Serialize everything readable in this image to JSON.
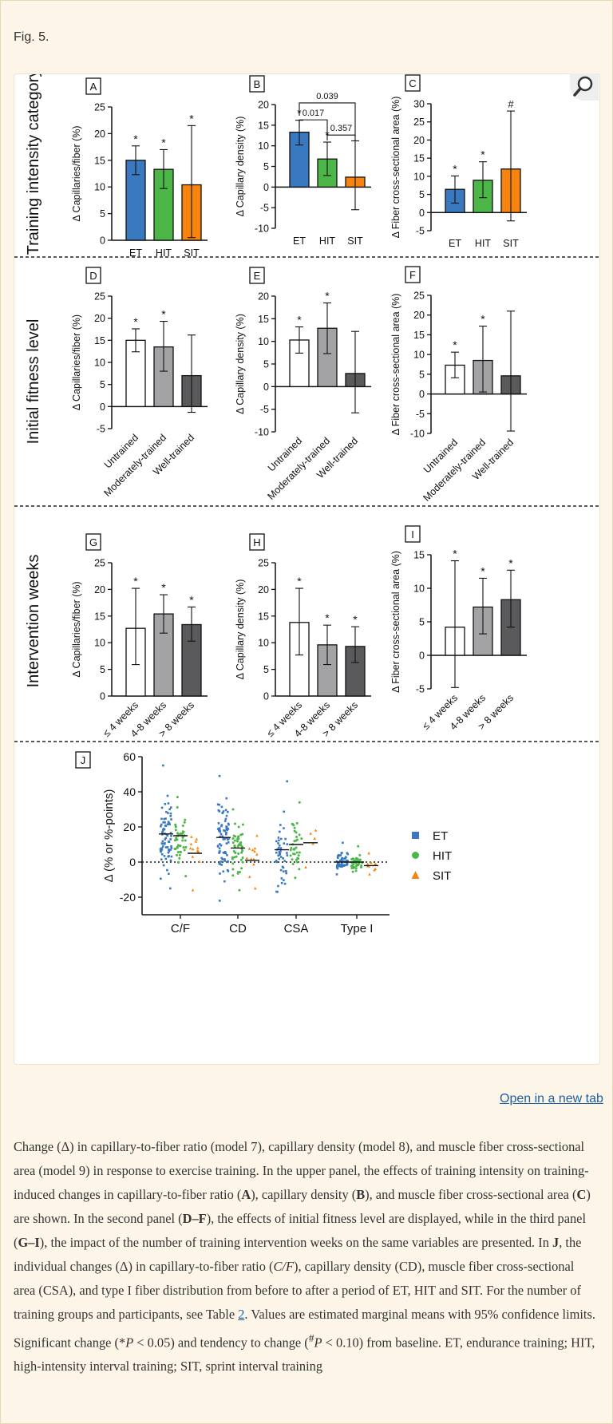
{
  "fig_label": "Fig. 5.",
  "open_link": "Open in a new tab",
  "colors": {
    "ET": "#3a78bf",
    "HIT": "#4cb648",
    "SIT": "#f88410",
    "white": "#ffffff",
    "lightgrey": "#a3a3a6",
    "darkgrey": "#5a5a5c"
  },
  "rows": [
    {
      "title": "Training intensity category",
      "panels": [
        "A",
        "B",
        "C"
      ]
    },
    {
      "title": "Initial fitness level",
      "panels": [
        "D",
        "E",
        "F"
      ]
    },
    {
      "title": "Intervention weeks",
      "panels": [
        "G",
        "H",
        "I"
      ]
    }
  ],
  "chart_data": [
    {
      "panel": "A",
      "type": "bar",
      "ylabel": "Δ Capillaries/fiber (%)",
      "ylim": [
        0,
        25
      ],
      "ticks": [
        0,
        5,
        10,
        15,
        20,
        25
      ],
      "categories": [
        "ET",
        "HIT",
        "SIT"
      ],
      "fills": [
        "ET",
        "HIT",
        "SIT"
      ],
      "values": [
        15.0,
        13.3,
        10.4
      ],
      "ci": [
        [
          12.3,
          17.7
        ],
        [
          9.7,
          17.0
        ],
        [
          0.5,
          21.5
        ]
      ],
      "marks": [
        "*",
        "*",
        "*"
      ]
    },
    {
      "panel": "B",
      "type": "bar",
      "ylabel": "Δ Capillary density (%)",
      "ylim": [
        -10,
        20
      ],
      "ticks": [
        -10,
        -5,
        0,
        5,
        10,
        15,
        20
      ],
      "categories": [
        "ET",
        "HIT",
        "SIT"
      ],
      "fills": [
        "ET",
        "HIT",
        "SIT"
      ],
      "values": [
        13.3,
        6.8,
        2.4
      ],
      "ci": [
        [
          10.2,
          16.2
        ],
        [
          2.8,
          10.9
        ],
        [
          -5.5,
          11.2
        ]
      ],
      "marks": [
        "*",
        "*",
        ""
      ],
      "brackets": [
        {
          "from": 0,
          "to": 2,
          "label": "0.039"
        },
        {
          "from": 0,
          "to": 1,
          "label": "0.017"
        },
        {
          "from": 1,
          "to": 2,
          "label": "0.357"
        }
      ]
    },
    {
      "panel": "C",
      "type": "bar",
      "ylabel": "Δ Fiber cross-sectional area (%)",
      "ylim": [
        -5,
        30
      ],
      "ticks": [
        -5,
        0,
        5,
        10,
        15,
        20,
        25,
        30
      ],
      "categories": [
        "ET",
        "HIT",
        "SIT"
      ],
      "fills": [
        "ET",
        "HIT",
        "SIT"
      ],
      "values": [
        6.4,
        8.9,
        12.0
      ],
      "ci": [
        [
          2.6,
          10.1
        ],
        [
          4.1,
          14.0
        ],
        [
          -2.3,
          28.0
        ]
      ],
      "marks": [
        "*",
        "*",
        "#"
      ]
    },
    {
      "panel": "D",
      "type": "bar",
      "ylabel": "Δ Capillaries/fiber (%)",
      "ylim": [
        -5,
        25
      ],
      "ticks": [
        -5,
        0,
        5,
        10,
        15,
        20,
        25
      ],
      "categories": [
        "Untrained",
        "Moderately-trained",
        "Well-trained"
      ],
      "fills": [
        "white",
        "lightgrey",
        "darkgrey"
      ],
      "values": [
        15.0,
        13.5,
        7.0
      ],
      "ci": [
        [
          12.4,
          17.6
        ],
        [
          8.0,
          19.3
        ],
        [
          -1.3,
          16.2
        ]
      ],
      "marks": [
        "*",
        "*",
        ""
      ]
    },
    {
      "panel": "E",
      "type": "bar",
      "ylabel": "Δ Capillary density (%)",
      "ylim": [
        -10,
        20
      ],
      "ticks": [
        -10,
        -5,
        0,
        5,
        10,
        15,
        20
      ],
      "categories": [
        "Untrained",
        "Moderately-trained",
        "Well-trained"
      ],
      "fills": [
        "white",
        "lightgrey",
        "darkgrey"
      ],
      "values": [
        10.3,
        12.9,
        2.9
      ],
      "ci": [
        [
          7.4,
          13.2
        ],
        [
          7.3,
          18.5
        ],
        [
          -5.8,
          12.2
        ]
      ],
      "marks": [
        "*",
        "*",
        ""
      ]
    },
    {
      "panel": "F",
      "type": "bar",
      "ylabel": "Δ Fiber cross-sectional area (%)",
      "ylim": [
        -10,
        25
      ],
      "ticks": [
        -10,
        -5,
        0,
        5,
        10,
        15,
        20,
        25
      ],
      "categories": [
        "Untrained",
        "Moderately-trained",
        "Well-trained"
      ],
      "fills": [
        "white",
        "lightgrey",
        "darkgrey"
      ],
      "values": [
        7.3,
        8.5,
        4.6
      ],
      "ci": [
        [
          4.1,
          10.6
        ],
        [
          0.5,
          17.2
        ],
        [
          -9.4,
          21.0
        ]
      ],
      "marks": [
        "*",
        "*",
        ""
      ]
    },
    {
      "panel": "G",
      "type": "bar",
      "ylabel": "Δ Capillaries/fiber (%)",
      "ylim": [
        0,
        25
      ],
      "ticks": [
        0,
        5,
        10,
        15,
        20,
        25
      ],
      "categories": [
        "≤ 4 weeks",
        "4-8 weeks",
        "> 8 weeks"
      ],
      "fills": [
        "white",
        "lightgrey",
        "darkgrey"
      ],
      "values": [
        12.7,
        15.4,
        13.4
      ],
      "ci": [
        [
          5.9,
          20.2
        ],
        [
          11.8,
          19.0
        ],
        [
          10.3,
          16.7
        ]
      ],
      "marks": [
        "*",
        "*",
        "*"
      ]
    },
    {
      "panel": "H",
      "type": "bar",
      "ylabel": "Δ Capillary density (%)",
      "ylim": [
        0,
        25
      ],
      "ticks": [
        0,
        5,
        10,
        15,
        20,
        25
      ],
      "categories": [
        "≤ 4 weeks",
        "4-8 weeks",
        "> 8 weeks"
      ],
      "fills": [
        "white",
        "lightgrey",
        "darkgrey"
      ],
      "values": [
        13.8,
        9.6,
        9.3
      ],
      "ci": [
        [
          7.7,
          20.2
        ],
        [
          5.9,
          13.3
        ],
        [
          6.3,
          13.0
        ]
      ],
      "marks": [
        "*",
        "*",
        "*"
      ]
    },
    {
      "panel": "I",
      "type": "bar",
      "ylabel": "Δ Fiber cross-sectional area (%)",
      "ylim": [
        -5,
        15
      ],
      "ticks": [
        -5,
        0,
        5,
        10,
        15
      ],
      "categories": [
        "≤ 4 weeks",
        "4-8 weeks",
        "> 8 weeks"
      ],
      "fills": [
        "white",
        "lightgrey",
        "darkgrey"
      ],
      "values": [
        4.2,
        7.2,
        8.3
      ],
      "ci": [
        [
          -4.8,
          14.1
        ],
        [
          3.2,
          11.5
        ],
        [
          4.2,
          12.7
        ]
      ],
      "marks": [
        "*",
        "*",
        "*"
      ]
    },
    {
      "panel": "J",
      "type": "scatter",
      "ylabel": "Δ (% or %-points)",
      "ylim": [
        -30,
        60
      ],
      "ticks": [
        -20,
        0,
        20,
        40,
        60
      ],
      "categories": [
        "C/F",
        "CD",
        "CSA",
        "Type I"
      ],
      "legend": [
        {
          "name": "ET",
          "fill": "ET",
          "shape": "square"
        },
        {
          "name": "HIT",
          "fill": "HIT",
          "shape": "circle"
        },
        {
          "name": "SIT",
          "fill": "SIT",
          "shape": "triangle"
        }
      ],
      "groups": [
        {
          "cat": 0,
          "series": "ET",
          "mean": 16,
          "n": 75,
          "min": -15,
          "max": 55
        },
        {
          "cat": 0,
          "series": "HIT",
          "mean": 15,
          "n": 45,
          "min": -8,
          "max": 37
        },
        {
          "cat": 0,
          "series": "SIT",
          "mean": 5,
          "n": 12,
          "min": -16,
          "max": 13
        },
        {
          "cat": 1,
          "series": "ET",
          "mean": 14,
          "n": 75,
          "min": -22,
          "max": 49
        },
        {
          "cat": 1,
          "series": "HIT",
          "mean": 8,
          "n": 50,
          "min": -16,
          "max": 30
        },
        {
          "cat": 1,
          "series": "SIT",
          "mean": 1,
          "n": 12,
          "min": -15,
          "max": 15
        },
        {
          "cat": 2,
          "series": "ET",
          "mean": 7,
          "n": 45,
          "min": -17,
          "max": 46
        },
        {
          "cat": 2,
          "series": "HIT",
          "mean": 10,
          "n": 35,
          "min": -9,
          "max": 34
        },
        {
          "cat": 2,
          "series": "SIT",
          "mean": 11,
          "n": 5,
          "min": -3,
          "max": 18
        },
        {
          "cat": 3,
          "series": "ET",
          "mean": 0,
          "n": 55,
          "min": -7,
          "max": 11
        },
        {
          "cat": 3,
          "series": "HIT",
          "mean": 0,
          "n": 40,
          "min": -5,
          "max": 9
        },
        {
          "cat": 3,
          "series": "SIT",
          "mean": -2,
          "n": 10,
          "min": -7,
          "max": 5
        }
      ]
    }
  ],
  "caption": [
    {
      "t": "Change (Δ) in capillary-to-fiber ratio (model 7), capillary density (model 8), and muscle fiber cross-sectional area (model 9) in response to exercise training. In the upper panel, the effects of training intensity on training-induced changes in capillary-to-fiber ratio ("
    },
    {
      "t": "A",
      "b": true
    },
    {
      "t": "), capillary density ("
    },
    {
      "t": "B",
      "b": true
    },
    {
      "t": "), and muscle fiber cross-sectional area ("
    },
    {
      "t": "C",
      "b": true
    },
    {
      "t": ") are shown. In the second panel ("
    },
    {
      "t": "D–F",
      "b": true
    },
    {
      "t": "), the effects of initial fitness level are displayed, while in the third panel ("
    },
    {
      "t": "G–I",
      "b": true
    },
    {
      "t": "), the impact of the number of training intervention weeks on the same variables are presented. In "
    },
    {
      "t": "J",
      "b": true
    },
    {
      "t": ", the individual changes (Δ) in capillary-to-fiber ratio ("
    },
    {
      "t": "C/F",
      "i": true
    },
    {
      "t": "), capillary density (CD), muscle fiber cross-sectional area (CSA), and type I fiber distribution from before to after a period of ET, HIT and SIT. For the number of training groups and participants, see Table "
    },
    {
      "t": "2",
      "link": true
    },
    {
      "t": ". Values are estimated marginal means with 95% confidence limits. Significant change (*"
    },
    {
      "t": "P",
      "i": true
    },
    {
      "t": " < 0.05) and tendency to change ("
    },
    {
      "t": "#",
      "sup": true
    },
    {
      "t": "P",
      "i": true
    },
    {
      "t": " < 0.10) from baseline. ET, endurance training; HIT, high-intensity interval training; SIT, sprint interval training"
    }
  ]
}
